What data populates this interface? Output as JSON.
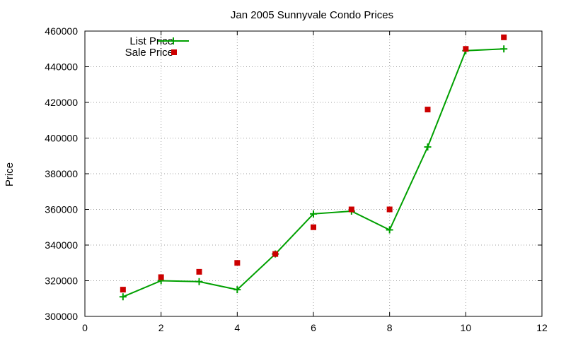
{
  "chart_data": {
    "type": "line",
    "title": "Jan 2005 Sunnyvale Condo Prices",
    "xlabel": "",
    "ylabel": "Price",
    "xlim": [
      0,
      12
    ],
    "ylim": [
      300000,
      460000
    ],
    "x_ticks": [
      0,
      2,
      4,
      6,
      8,
      10,
      12
    ],
    "y_ticks": [
      300000,
      320000,
      340000,
      360000,
      380000,
      400000,
      420000,
      440000,
      460000
    ],
    "grid": true,
    "legend_position": "top-left",
    "series": [
      {
        "name": "List Price",
        "style": "line-with-plus-markers",
        "color": "#00a000",
        "x": [
          1,
          2,
          3,
          4,
          5,
          6,
          7,
          8,
          9,
          10,
          11
        ],
        "values": [
          311000,
          320000,
          319500,
          315000,
          335000,
          357500,
          359000,
          348500,
          395000,
          449000,
          450000
        ]
      },
      {
        "name": "Sale Price",
        "style": "square-markers",
        "color": "#cc0000",
        "x": [
          1,
          2,
          3,
          4,
          5,
          6,
          7,
          8,
          9,
          10,
          11
        ],
        "values": [
          315000,
          322000,
          325000,
          330000,
          335000,
          350000,
          360000,
          360000,
          416000,
          450000,
          456500
        ]
      }
    ]
  }
}
